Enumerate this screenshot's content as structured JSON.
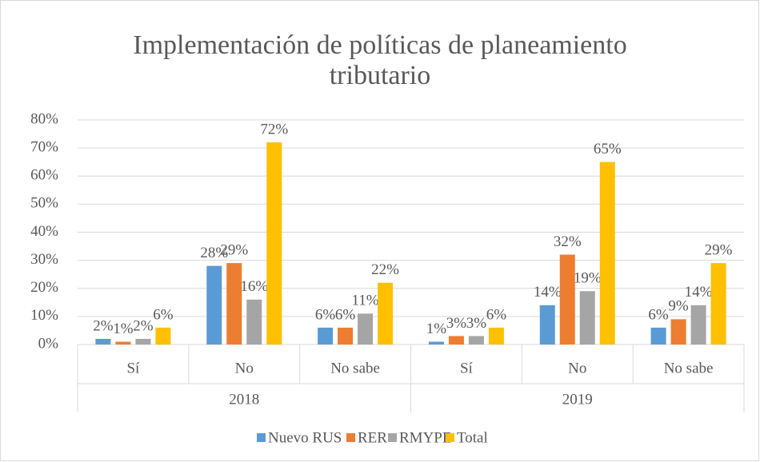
{
  "chart_data": {
    "type": "bar",
    "title": "Implementación de políticas de planeamiento tributario",
    "groups": [
      {
        "label": "2018",
        "categories": [
          "Sí",
          "No",
          "No sabe"
        ]
      },
      {
        "label": "2019",
        "categories": [
          "Sí",
          "No",
          "No sabe"
        ]
      }
    ],
    "series": [
      {
        "name": "Nuevo RUS",
        "color": "#5b9bd5",
        "values": [
          2,
          28,
          6,
          1,
          14,
          6
        ],
        "value_labels": [
          "2%",
          "28%",
          "6%",
          "1%",
          "14%",
          "6%"
        ]
      },
      {
        "name": "RER",
        "color": "#ed7d31",
        "values": [
          1,
          29,
          6,
          3,
          32,
          9
        ],
        "value_labels": [
          "1%",
          "29%",
          "6%",
          "3%",
          "32%",
          "9%"
        ]
      },
      {
        "name": "RMYPE",
        "color": "#a5a5a5",
        "values": [
          2,
          16,
          11,
          3,
          19,
          14
        ],
        "value_labels": [
          "2%",
          "16%",
          "11%",
          "3%",
          "19%",
          "14%"
        ]
      },
      {
        "name": "Total",
        "color": "#ffc000",
        "values": [
          6,
          72,
          22,
          6,
          65,
          29
        ],
        "value_labels": [
          "6%",
          "72%",
          "22%",
          "6%",
          "65%",
          "29%"
        ]
      }
    ],
    "ylim": [
      0,
      80
    ],
    "yticks": [
      {
        "value": 0,
        "label": "0%"
      },
      {
        "value": 10,
        "label": "10%"
      },
      {
        "value": 20,
        "label": "20%"
      },
      {
        "value": 30,
        "label": "30%"
      },
      {
        "value": 40,
        "label": "40%"
      },
      {
        "value": 50,
        "label": "50%"
      },
      {
        "value": 60,
        "label": "60%"
      },
      {
        "value": 70,
        "label": "70%"
      },
      {
        "value": 80,
        "label": "80%"
      }
    ],
    "grid": true,
    "legend": "bottom"
  }
}
